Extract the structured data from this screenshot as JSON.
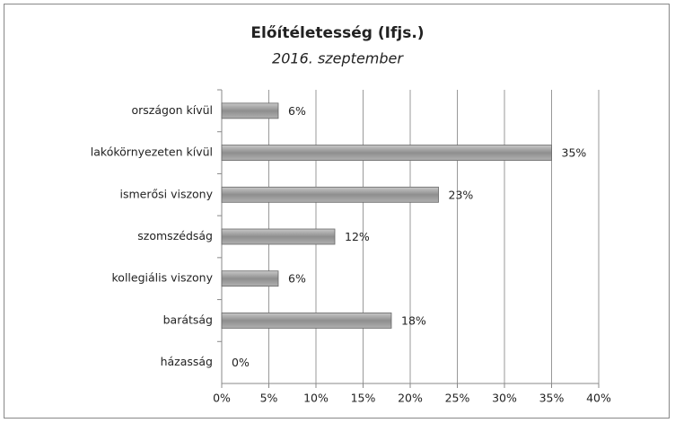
{
  "chart_data": {
    "type": "bar",
    "orientation": "horizontal",
    "title": "Előítéletesség (Ifjs.)",
    "subtitle": "2016. szeptember",
    "categories": [
      "országon kívül",
      "lakókörnyezeten kívül",
      "ismerősi viszony",
      "szomszédság",
      "kollegiális viszony",
      "barátság",
      "házasság"
    ],
    "values": [
      6,
      35,
      23,
      12,
      6,
      18,
      0
    ],
    "value_labels": [
      "6%",
      "35%",
      "23%",
      "12%",
      "6%",
      "18%",
      "0%"
    ],
    "color": "#9a9a9a",
    "xlim": [
      0,
      40
    ],
    "xticks": [
      {
        "value": 0,
        "label": "0%"
      },
      {
        "value": 5,
        "label": "5%"
      },
      {
        "value": 10,
        "label": "10%"
      },
      {
        "value": 15,
        "label": "15%"
      },
      {
        "value": 20,
        "label": "20%"
      },
      {
        "value": 25,
        "label": "25%"
      },
      {
        "value": 30,
        "label": "30%"
      },
      {
        "value": 35,
        "label": "35%"
      },
      {
        "value": 40,
        "label": "40%"
      }
    ],
    "grid": true
  }
}
